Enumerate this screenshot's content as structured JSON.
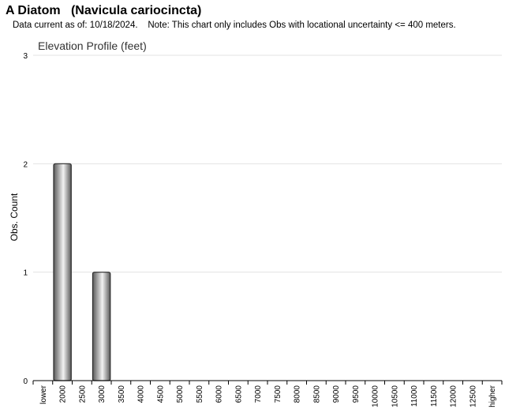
{
  "header": {
    "title": "A Diatom   (Navicula cariocincta)",
    "note": "Data current as of: 10/18/2024.    Note: This chart only includes Obs with locational uncertainty <= 400 meters."
  },
  "chart_data": {
    "type": "bar",
    "title": "Elevation Profile (feet)",
    "xlabel": "",
    "ylabel": "Obs. Count",
    "ylim": [
      0,
      3
    ],
    "yticks": [
      "0",
      "1",
      "2",
      "3"
    ],
    "grid": true,
    "categories": [
      "lower",
      "2000",
      "2500",
      "3000",
      "3500",
      "4000",
      "4500",
      "5000",
      "5500",
      "6000",
      "6500",
      "7000",
      "7500",
      "8000",
      "8500",
      "9000",
      "9500",
      "10000",
      "10500",
      "11000",
      "11500",
      "12000",
      "12500",
      "higher"
    ],
    "values": [
      0,
      2,
      0,
      1,
      0,
      0,
      0,
      0,
      0,
      0,
      0,
      0,
      0,
      0,
      0,
      0,
      0,
      0,
      0,
      0,
      0,
      0,
      0,
      0
    ],
    "colors": {
      "bar_dark": "#5a5a5a",
      "bar_light": "#f2f2f2",
      "bar_edge": "#2b2b2b",
      "grid": "#e3e3e3",
      "axis": "#000000"
    }
  }
}
